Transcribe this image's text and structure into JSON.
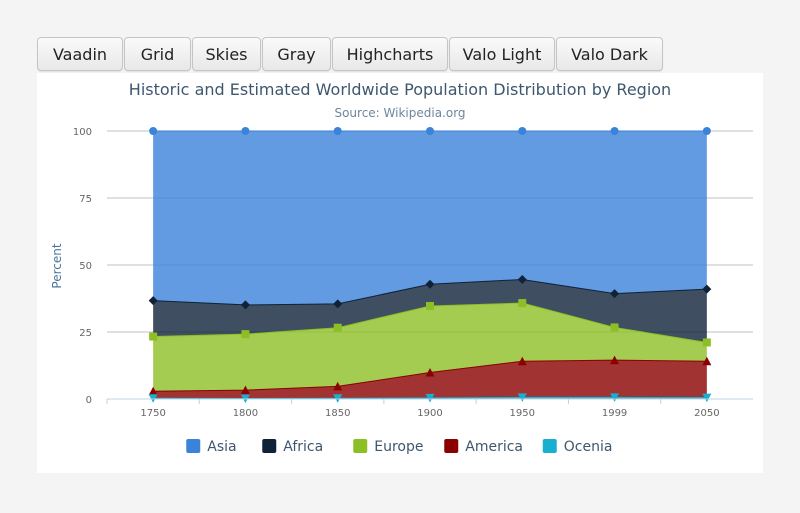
{
  "tabs": [
    {
      "label": "Vaadin"
    },
    {
      "label": "Grid"
    },
    {
      "label": "Skies"
    },
    {
      "label": "Gray"
    },
    {
      "label": "Highcharts"
    },
    {
      "label": "Valo Light"
    },
    {
      "label": "Valo Dark"
    }
  ],
  "chart_data": {
    "type": "area",
    "stacking": "percent",
    "title": "Historic and Estimated Worldwide Population Distribution by Region",
    "subtitle": "Source: Wikipedia.org",
    "ylabel": "Percent",
    "categories": [
      "1750",
      "1800",
      "1850",
      "1900",
      "1950",
      "1999",
      "2050"
    ],
    "ylim": [
      0,
      100
    ],
    "yticks": [
      0,
      25,
      50,
      75,
      100
    ],
    "grid": true,
    "legend": "bottom",
    "series": [
      {
        "name": "Asia",
        "color": "#3b82d9",
        "marker": "circle",
        "values": [
          63.3,
          64.9,
          64.5,
          57.2,
          55.4,
          60.7,
          59.0
        ]
      },
      {
        "name": "Africa",
        "color": "#0f2238",
        "marker": "diamond",
        "values": [
          13.4,
          10.9,
          8.9,
          8.1,
          8.8,
          12.6,
          19.9
        ]
      },
      {
        "name": "Europe",
        "color": "#8cbf26",
        "marker": "square",
        "values": [
          20.4,
          20.9,
          21.9,
          24.8,
          21.7,
          12.2,
          7.0
        ]
      },
      {
        "name": "America",
        "color": "#8b0000",
        "marker": "triangle",
        "values": [
          2.6,
          3.1,
          4.4,
          9.5,
          13.5,
          13.9,
          13.6
        ]
      },
      {
        "name": "Ocenia",
        "color": "#1aafd0",
        "marker": "triangle-down",
        "values": [
          0.3,
          0.2,
          0.3,
          0.4,
          0.6,
          0.6,
          0.5
        ]
      }
    ]
  }
}
